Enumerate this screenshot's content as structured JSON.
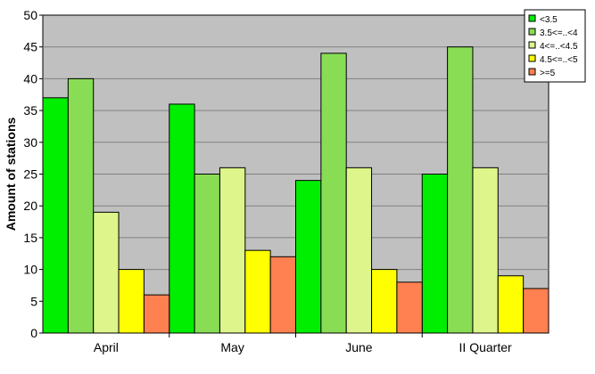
{
  "chart_data": {
    "type": "bar",
    "categories": [
      "April",
      "May",
      "June",
      "II Quarter"
    ],
    "series": [
      {
        "name": "<3.5",
        "color": "#00ee00",
        "values": [
          37,
          36,
          24,
          25
        ]
      },
      {
        "name": "3.5<=..<4",
        "color": "#88dd55",
        "values": [
          40,
          25,
          44,
          45
        ]
      },
      {
        "name": "4<=..<4.5",
        "color": "#ddf58a",
        "values": [
          19,
          26,
          26,
          26
        ]
      },
      {
        "name": "4.5<=..<5",
        "color": "#ffff00",
        "values": [
          10,
          13,
          10,
          9
        ]
      },
      {
        "name": ">=5",
        "color": "#ff8050",
        "values": [
          6,
          12,
          8,
          7
        ]
      }
    ],
    "xlabel": "",
    "ylabel": "Amount of stations",
    "ylim": [
      0,
      50
    ],
    "yticks": [
      0,
      5,
      10,
      15,
      20,
      25,
      30,
      35,
      40,
      45,
      50
    ],
    "grid": true,
    "legend_position": "top-right",
    "plot_background": "#c0c0c0"
  }
}
